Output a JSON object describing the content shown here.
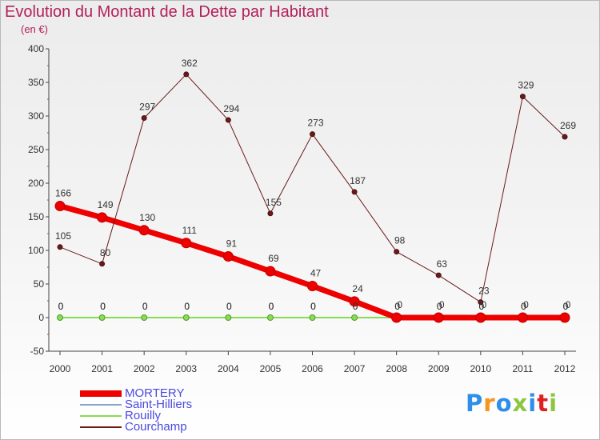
{
  "title": "Evolution du Montant de la Dette par Habitant",
  "unit_label": "(en €)",
  "logo": {
    "text": "Proxiti",
    "colors": [
      "#2f8fe8",
      "#f7941d",
      "#2f8fe8",
      "#8dc63f",
      "#2f8fe8",
      "#e02020",
      "#8dc63f"
    ]
  },
  "chart_data": {
    "type": "line",
    "title": "Evolution du Montant de la Dette par Habitant",
    "ylabel": "(en €)",
    "ylim": [
      -50,
      400
    ],
    "yticks": [
      -50,
      0,
      50,
      100,
      150,
      200,
      250,
      300,
      350,
      400
    ],
    "categories": [
      "2000",
      "2001",
      "2002",
      "2003",
      "2004",
      "2005",
      "2006",
      "2007",
      "2008",
      "2009",
      "2010",
      "2011",
      "2012"
    ],
    "series": [
      {
        "name": "MORTERY",
        "color": "#ee0000",
        "values": [
          166,
          149,
          130,
          111,
          91,
          69,
          47,
          24,
          0,
          0,
          0,
          0,
          0
        ]
      },
      {
        "name": "Saint-Hilliers",
        "color": "#88a8c8",
        "values": [
          0,
          0,
          0,
          0,
          0,
          0,
          0,
          0,
          0,
          0,
          0,
          0,
          0
        ]
      },
      {
        "name": "Rouilly",
        "color": "#88dd55",
        "values": [
          0,
          0,
          0,
          0,
          0,
          0,
          0,
          0,
          0,
          0,
          0,
          0,
          0
        ]
      },
      {
        "name": "Courchamp",
        "color": "#6b1a1a",
        "values": [
          105,
          80,
          297,
          362,
          294,
          155,
          273,
          187,
          98,
          63,
          23,
          329,
          269
        ]
      }
    ]
  }
}
